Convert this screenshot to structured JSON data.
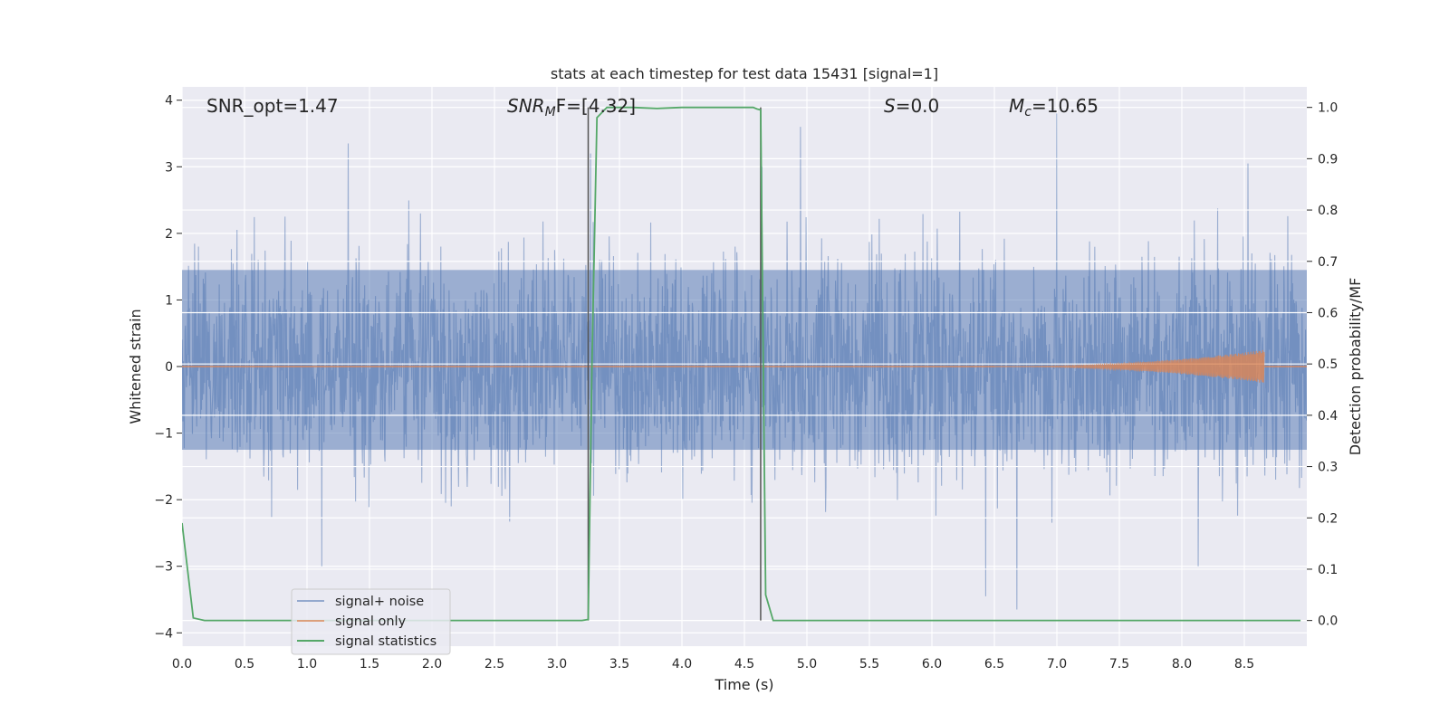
{
  "chart_data": {
    "type": "line",
    "title": "stats at each timestep for test data 15431 [signal=1]",
    "xlabel": "Time (s)",
    "ylabel": "Whitened strain",
    "y2label": "Detection probability/MF",
    "xlim": [
      0,
      9
    ],
    "ylim": [
      -4.2,
      4.2
    ],
    "y2lim": [
      -0.05,
      1.04
    ],
    "xticks": [
      "0.0",
      "0.5",
      "1.0",
      "1.5",
      "2.0",
      "2.5",
      "3.0",
      "3.5",
      "4.0",
      "4.5",
      "5.0",
      "5.5",
      "6.0",
      "6.5",
      "7.0",
      "7.5",
      "8.0",
      "8.5"
    ],
    "yticks": [
      "−4",
      "−3",
      "−2",
      "−1",
      "0",
      "1",
      "2",
      "3",
      "4"
    ],
    "y2ticks": [
      "0.0",
      "0.1",
      "0.2",
      "0.3",
      "0.4",
      "0.5",
      "0.6",
      "0.7",
      "0.8",
      "0.9",
      "1.0"
    ],
    "grid": true,
    "legend_position": "lower-left",
    "annotations": {
      "snr_opt": "SNR_opt=1.47",
      "snr_mf_prefix": "SNR",
      "snr_mf_sub": "M",
      "snr_mf_rest": "F=[4.32]",
      "s_var": "S",
      "s_rest": "=0.0",
      "mc_var": "M",
      "mc_sub": "c",
      "mc_rest": "=10.65"
    },
    "vlines_x": [
      3.25,
      4.63
    ],
    "series": [
      {
        "name": "signal+ noise",
        "color": "#4c72b0",
        "kind": "noise",
        "sigma": 1.0,
        "typical_range": [
          -1.8,
          2.0
        ],
        "peaks": [
          {
            "x": 1.33,
            "y": 3.35
          },
          {
            "x": 3.27,
            "y": 3.2
          },
          {
            "x": 4.64,
            "y": 3.0
          },
          {
            "x": 4.95,
            "y": 3.6
          },
          {
            "x": 7.0,
            "y": 3.8
          },
          {
            "x": 8.53,
            "y": 3.05
          },
          {
            "x": 6.43,
            "y": -3.45
          },
          {
            "x": 6.68,
            "y": -3.65
          },
          {
            "x": 1.12,
            "y": -3.0
          },
          {
            "x": 8.13,
            "y": -3.0
          }
        ]
      },
      {
        "name": "signal only",
        "color": "#dd8452",
        "kind": "chirp",
        "amplitude_end": 0.25,
        "t_start": 6.5,
        "t_end": 8.66
      },
      {
        "name": "signal statistics",
        "color": "#55a868",
        "axis": "right",
        "x": [
          0.0,
          0.09,
          0.18,
          3.2,
          3.25,
          3.28,
          3.32,
          3.4,
          3.6,
          3.8,
          4.0,
          4.3,
          4.57,
          4.6,
          4.63,
          4.67,
          4.73,
          8.95
        ],
        "y": [
          0.19,
          0.005,
          0.0,
          0.0,
          0.002,
          0.5,
          0.98,
          1.0,
          1.0,
          0.998,
          1.0,
          1.0,
          1.0,
          0.997,
          0.995,
          0.05,
          0.0,
          0.0
        ]
      }
    ]
  }
}
